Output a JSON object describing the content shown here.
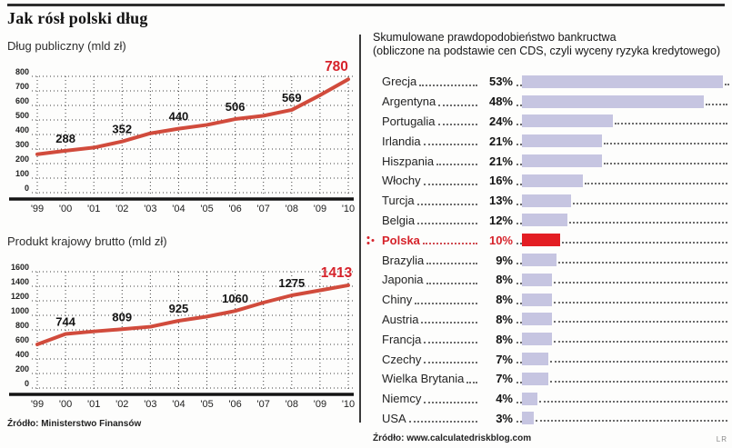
{
  "title": "Jak rósł polski dług",
  "credit": "LR",
  "colors": {
    "line": "#d14b3c",
    "red": "#d6232b",
    "bar": "#c6c5e1",
    "bar_red": "#e31d23",
    "grid": "#3d3d3d",
    "rule": "#2e2e2e"
  },
  "chart_data": [
    {
      "type": "line",
      "title": "Dług publiczny (mld zł)",
      "x": [
        "'99",
        "'00",
        "'01",
        "'02",
        "'03",
        "'04",
        "'05",
        "'06",
        "'07",
        "'08",
        "'09",
        "'10"
      ],
      "values": [
        264,
        288,
        310,
        352,
        408,
        440,
        466,
        506,
        529,
        569,
        670,
        780
      ],
      "ylim": [
        0,
        800
      ],
      "ytick": 100,
      "ytick_labels": [
        "0",
        "100",
        "200",
        "300",
        "400",
        "500",
        "600",
        "700",
        "800"
      ],
      "grid": true,
      "point_labels": [
        {
          "x": "'00",
          "value": 288
        },
        {
          "x": "'02",
          "value": 352
        },
        {
          "x": "'04",
          "value": 440
        },
        {
          "x": "'06",
          "value": 506
        },
        {
          "x": "'08",
          "value": 569
        },
        {
          "x": "'10",
          "value": 780,
          "highlight": true
        }
      ],
      "source": "Źródło: Ministerstwo Finansów"
    },
    {
      "type": "line",
      "title": "Produkt krajowy brutto (mld zł)",
      "x": [
        "'99",
        "'00",
        "'01",
        "'02",
        "'03",
        "'04",
        "'05",
        "'06",
        "'07",
        "'08",
        "'09",
        "'10"
      ],
      "values": [
        600,
        744,
        779,
        809,
        843,
        925,
        983,
        1060,
        1175,
        1275,
        1344,
        1413
      ],
      "ylim": [
        0,
        1600
      ],
      "ytick": 200,
      "ytick_labels": [
        "0",
        "200",
        "400",
        "600",
        "800",
        "1000",
        "1200",
        "1400",
        "1600"
      ],
      "grid": true,
      "point_labels": [
        {
          "x": "'00",
          "value": 744
        },
        {
          "x": "'02",
          "value": 809
        },
        {
          "x": "'04",
          "value": 925
        },
        {
          "x": "'06",
          "value": 1060
        },
        {
          "x": "'08",
          "value": 1275
        },
        {
          "x": "'10",
          "value": 1413,
          "highlight": true
        }
      ],
      "source": "Źródło: Ministerstwo Finansów"
    },
    {
      "type": "bar",
      "title": "Skumulowane prawdopodobieństwo bankructwa",
      "subtitle": "(obliczone na podstawie cen CDS, czyli wyceny ryzyka kredytowego)",
      "categories": [
        "Grecja",
        "Argentyna",
        "Portugalia",
        "Irlandia",
        "Hiszpania",
        "Włochy",
        "Turcja",
        "Belgia",
        "Polska",
        "Brazylia",
        "Japonia",
        "Chiny",
        "Austria",
        "Francja",
        "Czechy",
        "Wielka Brytania",
        "Niemcy",
        "USA"
      ],
      "values": [
        53,
        48,
        24,
        21,
        21,
        16,
        13,
        12,
        10,
        9,
        8,
        8,
        8,
        8,
        7,
        7,
        4,
        3
      ],
      "unit": "%",
      "xlim": [
        0,
        53
      ],
      "highlight_category": "Polska",
      "orientation": "horizontal",
      "source": "Źródło: www.calculatedriskblog.com"
    }
  ]
}
